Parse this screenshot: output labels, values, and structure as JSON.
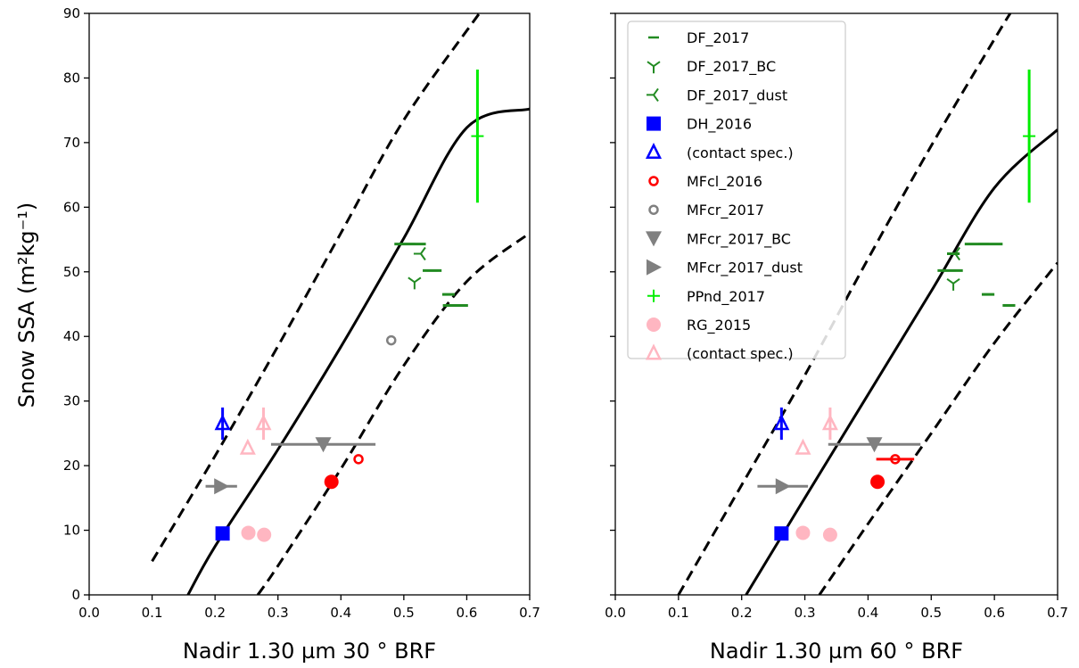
{
  "chart_data": {
    "type": "scatter",
    "shared_ylabel": "Snow SSA (m²kg⁻¹)",
    "xlim": [
      0.0,
      0.7
    ],
    "ylim": [
      0,
      90
    ],
    "xticks": [
      "0.0",
      "0.1",
      "0.2",
      "0.3",
      "0.4",
      "0.5",
      "0.6",
      "0.7"
    ],
    "yticks": [
      "0",
      "10",
      "20",
      "30",
      "40",
      "50",
      "60",
      "70",
      "80",
      "90"
    ],
    "grid": false,
    "legend_placement": "upper-left of right panel",
    "colors": {
      "DF": "#228b22",
      "DH": "#0000ff",
      "MFcl": "#ff0000",
      "MFcr": "#808080",
      "PPnd": "#00ee00",
      "RG": "#ffb6c1"
    },
    "legend": [
      {
        "label": "DF_2017",
        "marker": "hline",
        "color": "#228b22"
      },
      {
        "label": "DF_2017_BC",
        "marker": "tri_down",
        "color": "#228b22"
      },
      {
        "label": "DF_2017_dust",
        "marker": "tri_left",
        "color": "#228b22"
      },
      {
        "label": "DH_2016",
        "marker": "square",
        "color": "#0000ff"
      },
      {
        "label": "(contact spec.)",
        "marker": "triangle_open",
        "color": "#0000ff"
      },
      {
        "label": "MFcl_2016",
        "marker": "circle_small_open",
        "color": "#ff0000"
      },
      {
        "label": "MFcr_2017",
        "marker": "circle_small_open",
        "color": "#808080"
      },
      {
        "label": "MFcr_2017_BC",
        "marker": "triangle_down_filled",
        "color": "#808080"
      },
      {
        "label": "MFcr_2017_dust",
        "marker": "triangle_right_filled",
        "color": "#808080"
      },
      {
        "label": "PPnd_2017",
        "marker": "plus",
        "color": "#00ee00"
      },
      {
        "label": "RG_2015",
        "marker": "circle",
        "color": "#ffb6c1"
      },
      {
        "label": "(contact spec.)",
        "marker": "triangle_open",
        "color": "#ffb6c1"
      }
    ],
    "panels": [
      {
        "xlabel": "Nadir 1.30 µm 30 ° BRF",
        "curves": {
          "central": [
            [
              0.157,
              0
            ],
            [
              0.2,
              7.5
            ],
            [
              0.3,
              22.5
            ],
            [
              0.4,
              38.4
            ],
            [
              0.5,
              55.2
            ],
            [
              0.6,
              72.3
            ],
            [
              0.7,
              75.2
            ]
          ],
          "upper": [
            [
              0.1,
              5.2
            ],
            [
              0.2,
              21.5
            ],
            [
              0.3,
              38.5
            ],
            [
              0.4,
              56
            ],
            [
              0.5,
              73.5
            ],
            [
              0.62,
              90
            ]
          ],
          "lower": [
            [
              0.268,
              0
            ],
            [
              0.3,
              4.5
            ],
            [
              0.4,
              19.5
            ],
            [
              0.5,
              35.5
            ],
            [
              0.6,
              48.5
            ],
            [
              0.7,
              56
            ]
          ]
        },
        "points": [
          {
            "series": "DF_2017",
            "x": 0.51,
            "y": 54.3,
            "xerr": 0.025,
            "marker": "hline",
            "color": "#228b22"
          },
          {
            "series": "DF_2017",
            "x": 0.545,
            "y": 50.2,
            "xerr": 0.015,
            "marker": "hline",
            "color": "#228b22"
          },
          {
            "series": "DF_2017",
            "x": 0.571,
            "y": 46.5,
            "xerr": 0.01,
            "marker": "hline",
            "color": "#228b22"
          },
          {
            "series": "DF_2017",
            "x": 0.582,
            "y": 44.8,
            "xerr": 0.02,
            "marker": "hline",
            "color": "#228b22"
          },
          {
            "series": "DF_2017_BC",
            "x": 0.517,
            "y": 48.4,
            "marker": "tri_down",
            "color": "#228b22"
          },
          {
            "series": "DF_2017_dust",
            "x": 0.527,
            "y": 52.8,
            "marker": "tri_left",
            "color": "#228b22"
          },
          {
            "series": "DH_2016",
            "x": 0.212,
            "y": 9.5,
            "marker": "square",
            "color": "#0000ff"
          },
          {
            "series": "DH_2016 (contact spec.)",
            "x": 0.212,
            "y": 26.5,
            "yerr": 2.5,
            "marker": "triangle_open",
            "color": "#0000ff"
          },
          {
            "series": "MFcl_2016",
            "x": 0.428,
            "y": 21.0,
            "marker": "circle_small_open",
            "color": "#ff0000"
          },
          {
            "series": "MFcl_2016",
            "x": 0.385,
            "y": 17.5,
            "marker": "circle",
            "color": "#ff0000"
          },
          {
            "series": "MFcr_2017",
            "x": 0.48,
            "y": 39.4,
            "marker": "circle_small_open",
            "color": "#808080"
          },
          {
            "series": "MFcr_2017_BC",
            "x": 0.372,
            "y": 23.3,
            "xerr": 0.083,
            "marker": "triangle_down_filled",
            "color": "#808080"
          },
          {
            "series": "MFcr_2017_dust",
            "x": 0.21,
            "y": 16.8,
            "xerr": 0.025,
            "marker": "triangle_right_filled",
            "color": "#808080"
          },
          {
            "series": "PPnd_2017",
            "x": 0.617,
            "y": 71.0,
            "yerr": 10.3,
            "marker": "plus",
            "color": "#00ee00"
          },
          {
            "series": "RG_2015",
            "x": 0.253,
            "y": 9.6,
            "marker": "circle",
            "color": "#ffb6c1"
          },
          {
            "series": "RG_2015",
            "x": 0.278,
            "y": 9.3,
            "marker": "circle",
            "color": "#ffb6c1"
          },
          {
            "series": "RG_2015 (contact spec.)",
            "x": 0.252,
            "y": 22.7,
            "marker": "triangle_open",
            "color": "#ffb6c1"
          },
          {
            "series": "RG_2015 (contact spec.)",
            "x": 0.277,
            "y": 26.5,
            "yerr": 2.5,
            "marker": "triangle_open",
            "color": "#ffb6c1"
          }
        ]
      },
      {
        "xlabel": "Nadir 1.30 µm 60 ° BRF",
        "curves": {
          "central": [
            [
              0.207,
              0
            ],
            [
              0.3,
              15
            ],
            [
              0.4,
              31
            ],
            [
              0.5,
              47
            ],
            [
              0.6,
              63
            ],
            [
              0.7,
              72
            ]
          ],
          "upper": [
            [
              0.1,
              0
            ],
            [
              0.2,
              17
            ],
            [
              0.3,
              34
            ],
            [
              0.4,
              52
            ],
            [
              0.5,
              69.5
            ],
            [
              0.6,
              86
            ],
            [
              0.625,
              90
            ]
          ],
          "lower": [
            [
              0.323,
              0
            ],
            [
              0.4,
              11
            ],
            [
              0.5,
              25
            ],
            [
              0.6,
              39
            ],
            [
              0.7,
              51.4
            ]
          ]
        },
        "points": [
          {
            "series": "DF_2017",
            "x": 0.583,
            "y": 54.3,
            "xerr": 0.03,
            "marker": "hline",
            "color": "#228b22"
          },
          {
            "series": "DF_2017",
            "x": 0.53,
            "y": 50.2,
            "xerr": 0.02,
            "marker": "hline",
            "color": "#228b22"
          },
          {
            "series": "DF_2017",
            "x": 0.59,
            "y": 46.5,
            "xerr": 0.01,
            "marker": "hline",
            "color": "#228b22"
          },
          {
            "series": "DF_2017",
            "x": 0.623,
            "y": 44.8,
            "xerr": 0.01,
            "marker": "hline",
            "color": "#228b22"
          },
          {
            "series": "DF_2017",
            "x": 0.535,
            "y": 52.8,
            "xerr": 0.01,
            "marker": "hline",
            "color": "#228b22"
          },
          {
            "series": "DF_2017_BC",
            "x": 0.535,
            "y": 48.2,
            "marker": "tri_down",
            "color": "#228b22"
          },
          {
            "series": "DF_2017_dust",
            "x": 0.538,
            "y": 52.8,
            "marker": "tri_left",
            "color": "#228b22"
          },
          {
            "series": "DH_2016",
            "x": 0.263,
            "y": 9.5,
            "marker": "square",
            "color": "#0000ff"
          },
          {
            "series": "DH_2016 (contact spec.)",
            "x": 0.263,
            "y": 26.5,
            "yerr": 2.5,
            "marker": "triangle_open",
            "color": "#0000ff"
          },
          {
            "series": "MFcl_2016",
            "x": 0.443,
            "y": 21.0,
            "xerr": 0.03,
            "marker": "circle_small_open",
            "color": "#ff0000"
          },
          {
            "series": "MFcl_2016",
            "x": 0.415,
            "y": 17.5,
            "marker": "circle",
            "color": "#ff0000"
          },
          {
            "series": "MFcr_2017_BC",
            "x": 0.41,
            "y": 23.3,
            "xerr": 0.073,
            "marker": "triangle_down_filled",
            "color": "#808080"
          },
          {
            "series": "MFcr_2017_dust",
            "x": 0.265,
            "y": 16.8,
            "xerr": 0.04,
            "marker": "triangle_right_filled",
            "color": "#808080"
          },
          {
            "series": "PPnd_2017",
            "x": 0.655,
            "y": 71.0,
            "yerr": 10.3,
            "marker": "plus",
            "color": "#00ee00"
          },
          {
            "series": "RG_2015",
            "x": 0.297,
            "y": 9.6,
            "marker": "circle",
            "color": "#ffb6c1"
          },
          {
            "series": "RG_2015",
            "x": 0.34,
            "y": 9.3,
            "marker": "circle",
            "color": "#ffb6c1"
          },
          {
            "series": "RG_2015 (contact spec.)",
            "x": 0.297,
            "y": 22.7,
            "marker": "triangle_open",
            "color": "#ffb6c1"
          },
          {
            "series": "RG_2015 (contact spec.)",
            "x": 0.34,
            "y": 26.5,
            "yerr": 2.5,
            "marker": "triangle_open",
            "color": "#ffb6c1"
          }
        ]
      }
    ]
  }
}
